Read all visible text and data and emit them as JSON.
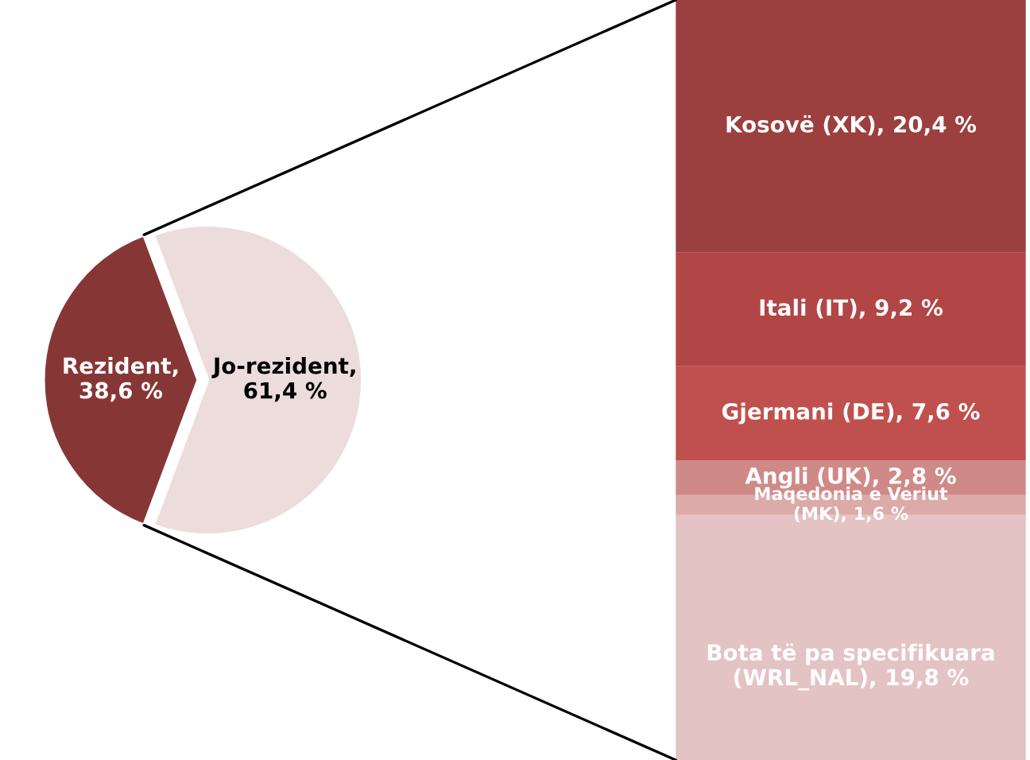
{
  "chart_data": [
    {
      "type": "pie",
      "categories": [
        null,
        null
      ],
      "values": [
        38.6,
        61.4
      ],
      "colors": [
        "#873636",
        "#ecdcdc"
      ],
      "value_labels": [
        "Rezident, 38,6 %",
        "Jo-rezident, 61,4 %"
      ]
    },
    {
      "type": "bar",
      "stacked": true,
      "categories": [
        null
      ],
      "series": [
        {
          "color": "#e4c3c4",
          "values": [
            19.8
          ],
          "value_labels": [
            "Bota të pa specifikuara (WRL_NAL), 19,8 %"
          ]
        },
        {
          "color": "#dcaaa9",
          "values": [
            1.6
          ],
          "value_labels": [
            "Maqedonia e Veriut (MK), 1,6 %"
          ]
        },
        {
          "color": "#cf8a87",
          "values": [
            2.8
          ],
          "value_labels": [
            "Angli (UK), 2,8 %"
          ]
        },
        {
          "color": "#c0504d",
          "values": [
            7.6
          ],
          "value_labels": [
            "Gjermani (DE), 7,6 %"
          ]
        },
        {
          "color": "#b24545",
          "values": [
            9.2
          ],
          "value_labels": [
            "Itali (IT), 9,2 %"
          ]
        },
        {
          "color": "#9c3f3f",
          "values": [
            20.4
          ],
          "value_labels": [
            "Kosovë (XK), 20,4 %"
          ]
        }
      ]
    }
  ]
}
